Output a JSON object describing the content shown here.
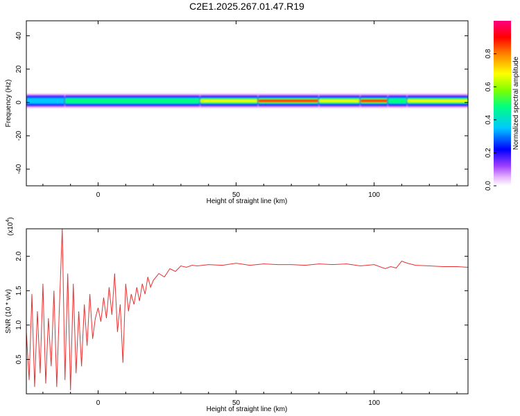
{
  "title": "C2E1.2025.267.01.47.R19",
  "chart_data": [
    {
      "type": "heatmap",
      "xlabel": "Height of straight line (km)",
      "ylabel": "Frequency (Hz)",
      "xlim": [
        -26,
        134
      ],
      "ylim": [
        -50,
        49
      ],
      "x_ticks": [
        0,
        50,
        100
      ],
      "y_ticks": [
        -40,
        -20,
        0,
        20,
        40
      ],
      "colorbar": {
        "label": "Normalized spectral amplitude",
        "range": [
          0.0,
          1.0
        ],
        "ticks": [
          "0.0",
          "0.2",
          "0.4",
          "0.6",
          "0.8"
        ],
        "colors": [
          "#ffffff",
          "#e0a0ff",
          "#8000ff",
          "#0000ff",
          "#00c0ff",
          "#00ff80",
          "#a0ff00",
          "#ffff00",
          "#ff8000",
          "#ff0000",
          "#ff0080"
        ]
      },
      "ridge": {
        "center_frequency_hz": 1,
        "segments": [
          {
            "x": [
              -26,
              -12
            ],
            "level": 0.45
          },
          {
            "x": [
              -12,
              37
            ],
            "level": 0.55
          },
          {
            "x": [
              37,
              58
            ],
            "level": 0.7
          },
          {
            "x": [
              58,
              80
            ],
            "level": 0.95
          },
          {
            "x": [
              80,
              95
            ],
            "level": 0.75
          },
          {
            "x": [
              95,
              105
            ],
            "level": 0.9
          },
          {
            "x": [
              105,
              112
            ],
            "level": 0.6
          },
          {
            "x": [
              112,
              134
            ],
            "level": 0.8
          }
        ]
      }
    },
    {
      "type": "line",
      "xlabel": "Height of straight line (km)",
      "ylabel": "SNR (10 * v/v)",
      "multiplier_label": "(x10",
      "multiplier_exp": "4",
      "xlim": [
        -26,
        134
      ],
      "ylim": [
        0,
        2.4
      ],
      "x_ticks": [
        0,
        50,
        100
      ],
      "y_ticks": [
        0.5,
        1.0,
        1.5,
        2.0
      ],
      "y_tick_labels": [
        "0.5",
        "1.0",
        "1.5",
        "2.0"
      ],
      "color": "#e83030",
      "series": [
        {
          "x": [
            -26,
            -25,
            -24,
            -23,
            -22,
            -21,
            -20,
            -19,
            -18,
            -17,
            -16,
            -15,
            -14,
            -13,
            -12,
            -11,
            -10,
            -9,
            -8,
            -7,
            -6,
            -5,
            -4,
            -3,
            -2,
            -1,
            0,
            1,
            2,
            3,
            4,
            5,
            6,
            7,
            8,
            9,
            10,
            11,
            12,
            13,
            14,
            15,
            16,
            17,
            18,
            19,
            20,
            22,
            24,
            26,
            28,
            30,
            32,
            34,
            36,
            40,
            45,
            50,
            55,
            60,
            65,
            70,
            75,
            80,
            85,
            90,
            95,
            100,
            104,
            106,
            108,
            110,
            112,
            115,
            120,
            125,
            130,
            134
          ],
          "values": [
            0.9,
            0.2,
            1.45,
            0.1,
            1.2,
            0.3,
            1.6,
            0.15,
            1.1,
            0.4,
            1.5,
            0.1,
            1.3,
            2.4,
            0.2,
            1.75,
            0.05,
            1.6,
            0.3,
            1.2,
            0.4,
            1.3,
            0.7,
            1.45,
            0.8,
            1.1,
            1.25,
            1.05,
            1.4,
            1.1,
            1.55,
            1.15,
            1.75,
            0.9,
            1.3,
            0.45,
            1.6,
            1.2,
            1.45,
            1.3,
            1.55,
            1.35,
            1.6,
            1.45,
            1.7,
            1.55,
            1.65,
            1.75,
            1.7,
            1.82,
            1.78,
            1.86,
            1.84,
            1.87,
            1.86,
            1.88,
            1.87,
            1.9,
            1.87,
            1.89,
            1.88,
            1.88,
            1.87,
            1.89,
            1.88,
            1.89,
            1.86,
            1.88,
            1.82,
            1.85,
            1.83,
            1.93,
            1.9,
            1.87,
            1.86,
            1.85,
            1.85,
            1.84
          ]
        }
      ]
    }
  ]
}
